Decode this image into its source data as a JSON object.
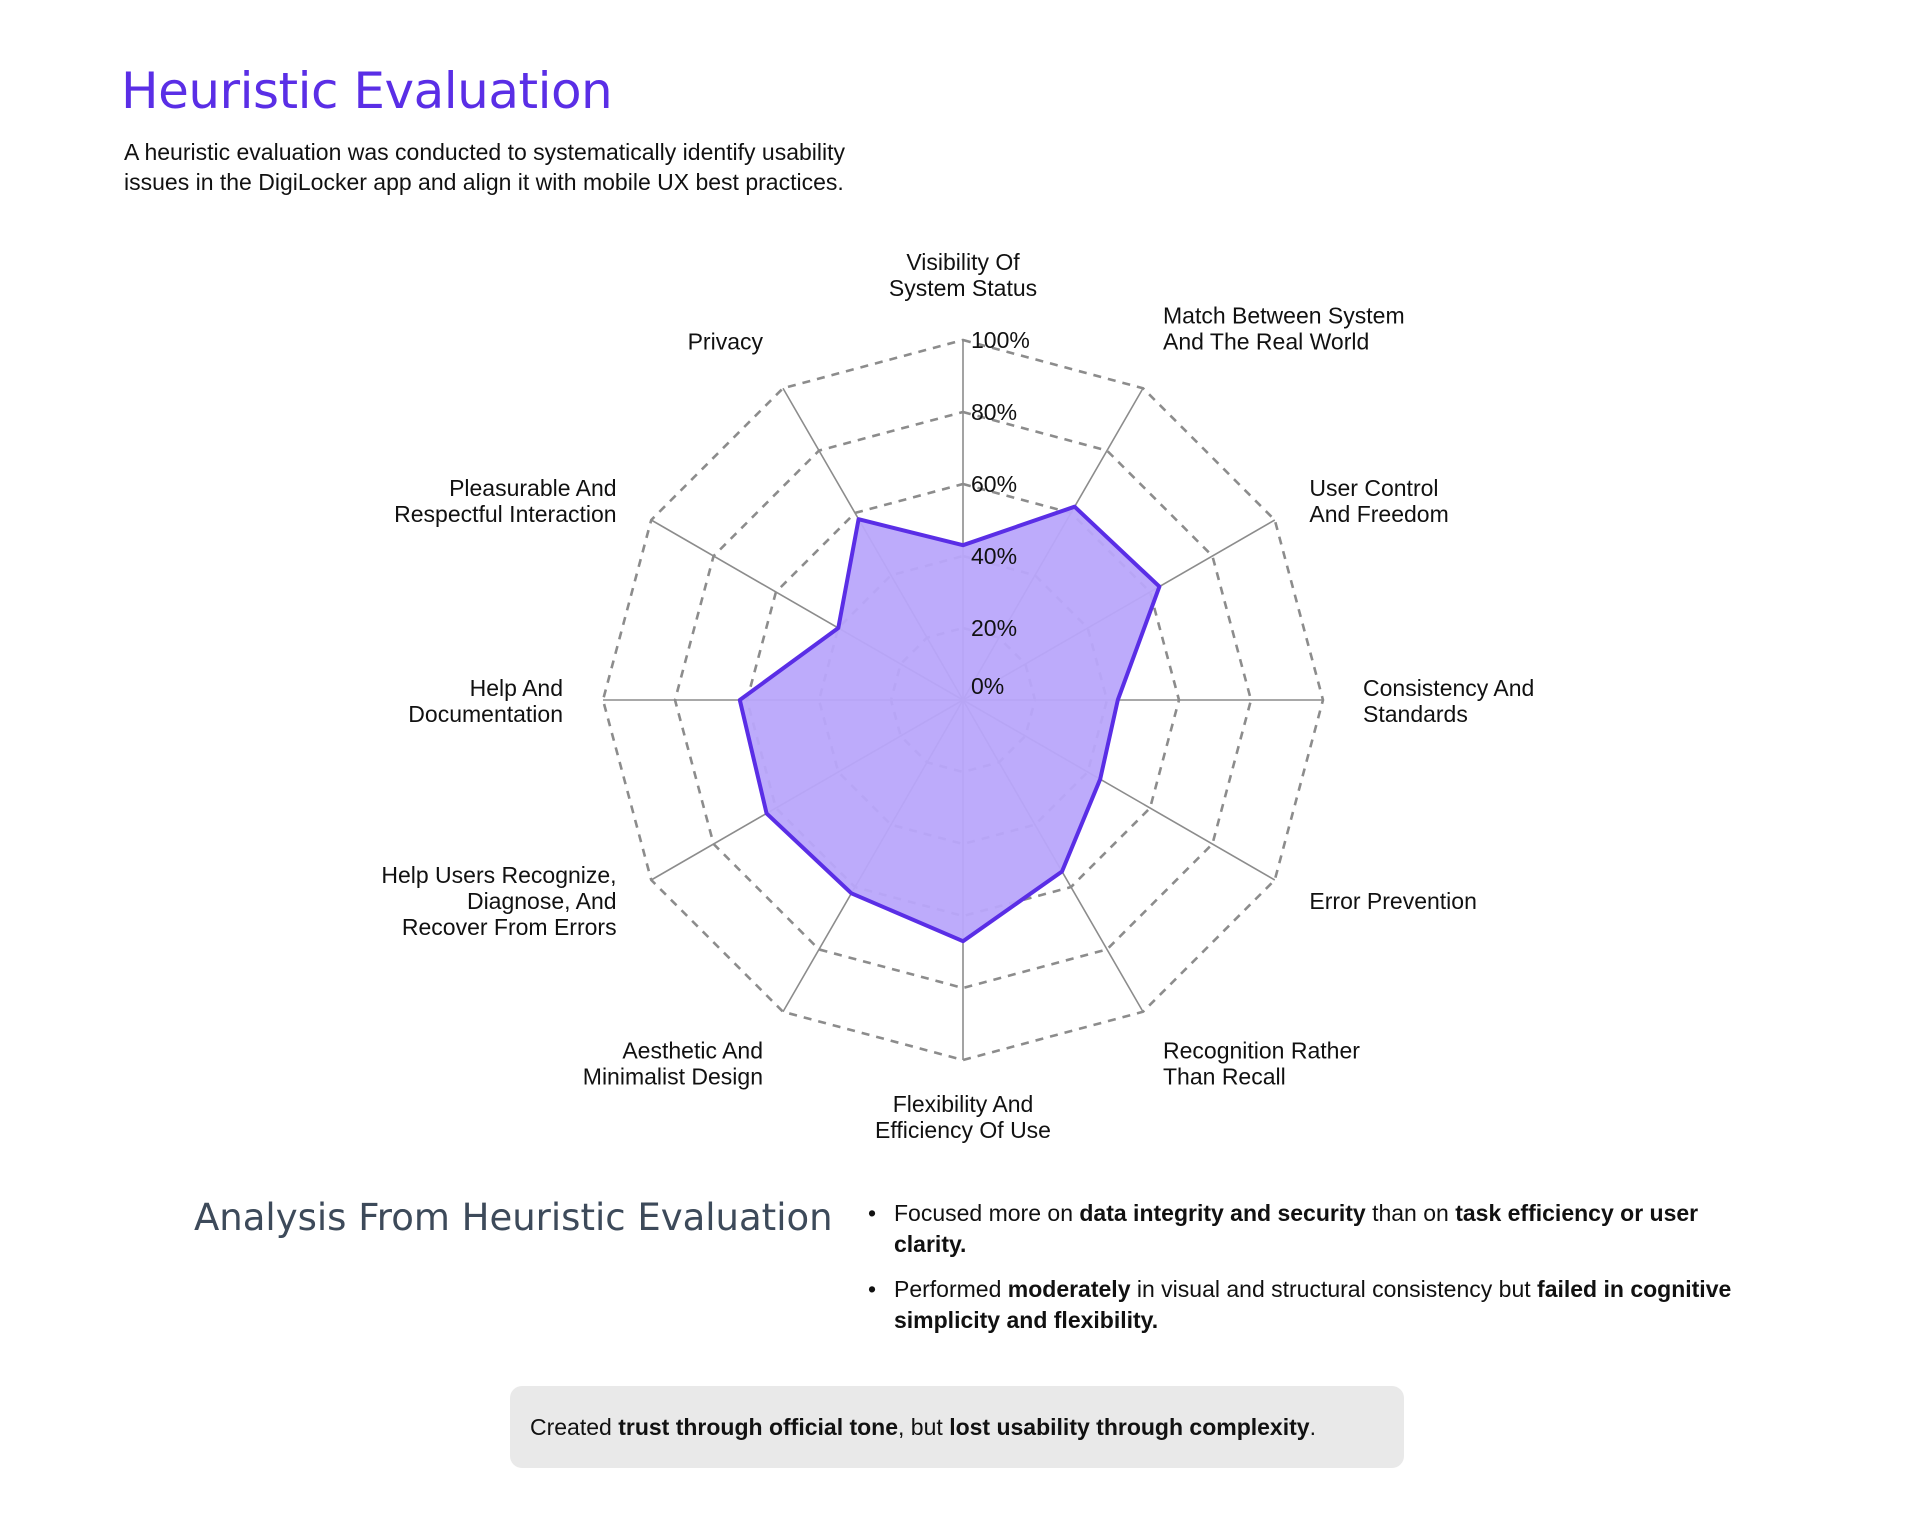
{
  "header": {
    "title": "Heuristic Evaluation",
    "intro_line1": "A heuristic evaluation was conducted to systematically identify usability",
    "intro_line2": "issues in the DigiLocker app and align it with mobile UX best practices."
  },
  "chart_data": {
    "type": "radar",
    "title": "",
    "axis_labels": [
      [
        "Visibility Of",
        "System Status"
      ],
      [
        "Match Between System",
        "And The Real World"
      ],
      [
        "User Control",
        "And Freedom"
      ],
      [
        "Consistency And",
        "Standards"
      ],
      [
        "Error Prevention"
      ],
      [
        "Recognition Rather",
        "Than Recall"
      ],
      [
        "Flexibility And",
        "Efficiency Of Use"
      ],
      [
        "Aesthetic And",
        "Minimalist Design"
      ],
      [
        "Help Users Recognize,",
        "Diagnose, And",
        "Recover From Errors"
      ],
      [
        "Help And",
        "Documentation"
      ],
      [
        "Pleasurable And",
        "Respectful Interaction"
      ],
      [
        "Privacy"
      ]
    ],
    "categories": [
      "Visibility Of System Status",
      "Match Between System And The Real World",
      "User Control And Freedom",
      "Consistency And Standards",
      "Error Prevention",
      "Recognition Rather Than Recall",
      "Flexibility And Efficiency Of Use",
      "Aesthetic And Minimalist Design",
      "Help Users Recognize, Diagnose, And Recover From Errors",
      "Help And Documentation",
      "Pleasurable And Respectful Interaction",
      "Privacy"
    ],
    "values": [
      43,
      62,
      63,
      43,
      44,
      55,
      67,
      62,
      63,
      62,
      40,
      58
    ],
    "ticks": [
      "0%",
      "20%",
      "40%",
      "60%",
      "80%",
      "100%"
    ],
    "tick_values": [
      0,
      20,
      40,
      60,
      80,
      100
    ],
    "ylim": [
      0,
      100
    ],
    "grid": "dashed polygons",
    "colors": {
      "fill": "#b9a6fb",
      "stroke": "#5a2ee6",
      "grid": "#8c8c8c",
      "spoke": "#8c8c8c"
    }
  },
  "analysis": {
    "heading": "Analysis From Heuristic Evaluation",
    "bullet1": {
      "t1": "Focused more on ",
      "b1": "data integrity and security",
      "t2": " than on ",
      "b2": "task efficiency or user clarity."
    },
    "bullet2": {
      "t1": "Performed ",
      "b1": "moderately",
      "t2": " in visual and structural consistency but ",
      "b2": "failed in cognitive simplicity and flexibility."
    }
  },
  "summary": {
    "t1": "Created ",
    "b1": "trust through official tone",
    "t2": ", but ",
    "b2": "lost usability through complexity",
    "t3": "."
  }
}
